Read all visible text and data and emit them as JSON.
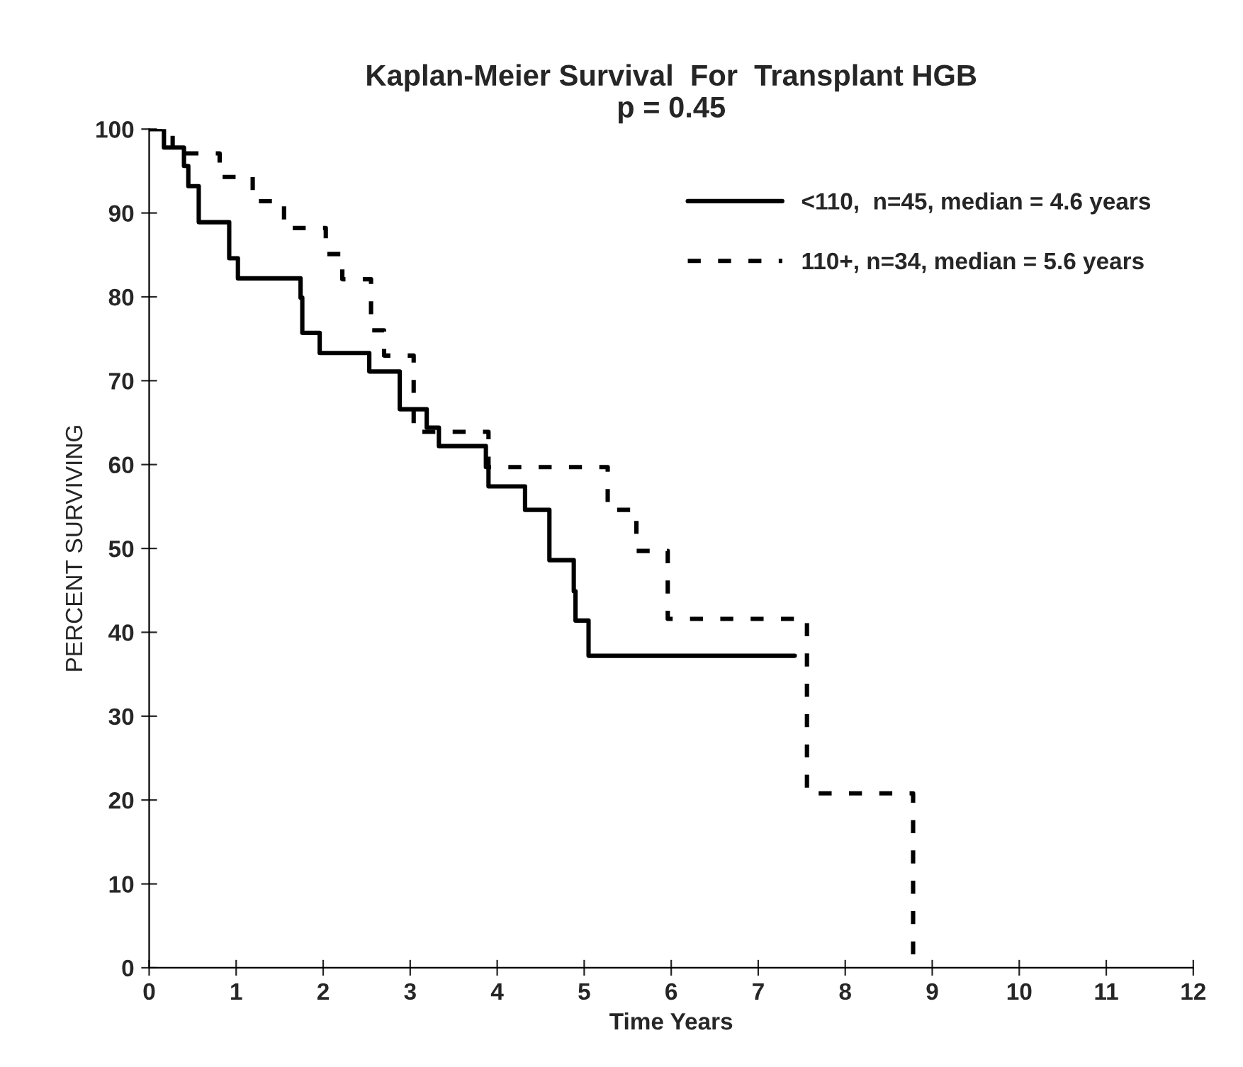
{
  "chart_data": {
    "type": "step",
    "title": "Kaplan-Meier Survival  For  Transplant HGB",
    "subtitle": "p = 0.45",
    "xlabel": "Time Years",
    "ylabel": "PERCENT SURVIVING",
    "series": [
      {
        "name": "<110,  n=45, median = 4.6 years",
        "color": "#000000",
        "line_style": "solid",
        "x": [
          0,
          0.17,
          0.4,
          0.45,
          0.57,
          0.92,
          1.02,
          1.74,
          1.76,
          1.96,
          2.53,
          2.88,
          3.19,
          3.33,
          3.87,
          3.9,
          4.32,
          4.6,
          4.88,
          4.9,
          5.05,
          7.42
        ],
        "values": [
          100,
          97.8,
          95.6,
          93.2,
          88.9,
          84.6,
          82.2,
          79.9,
          75.7,
          73.3,
          71.1,
          66.6,
          64.4,
          62.2,
          59.7,
          57.4,
          54.6,
          48.6,
          44.9,
          41.4,
          37.2,
          37.2
        ]
      },
      {
        "name": "110+, n=34, median = 5.6 years",
        "color": "#000000",
        "line_style": "dashed",
        "x": [
          0,
          0.27,
          0.81,
          1.19,
          1.55,
          2.03,
          2.22,
          2.55,
          2.7,
          3.04,
          3.9,
          5.27,
          5.6,
          5.96,
          7.56,
          8.78
        ],
        "values": [
          100,
          97.1,
          94.3,
          91.4,
          88.2,
          85.1,
          82.1,
          76.0,
          73.0,
          63.9,
          59.7,
          54.6,
          49.7,
          41.6,
          20.8,
          0
        ]
      }
    ],
    "xlim": [
      0,
      12
    ],
    "xticks": [
      0,
      1,
      2,
      3,
      4,
      5,
      6,
      7,
      8,
      9,
      10,
      11,
      12
    ],
    "ylim": [
      0,
      100
    ],
    "yticks": [
      0,
      10,
      20,
      30,
      40,
      50,
      60,
      70,
      80,
      90,
      100
    ],
    "legend": "top right",
    "grid": false,
    "marker": "none"
  }
}
